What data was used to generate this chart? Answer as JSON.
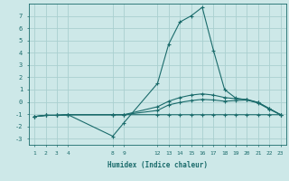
{
  "xlabel": "Humidex (Indice chaleur)",
  "bg_color": "#cde8e8",
  "grid_color": "#aad0d0",
  "line_color": "#1a6b6b",
  "ylim": [
    -3.5,
    8.0
  ],
  "yticks": [
    -3,
    -2,
    -1,
    0,
    1,
    2,
    3,
    4,
    5,
    6,
    7
  ],
  "xticks": [
    1,
    2,
    3,
    4,
    8,
    9,
    12,
    13,
    14,
    15,
    16,
    17,
    18,
    19,
    20,
    21,
    22,
    23
  ],
  "lines": [
    {
      "x": [
        1,
        2,
        3,
        4,
        8,
        9,
        12,
        13,
        14,
        15,
        16,
        17,
        18,
        19,
        20,
        21,
        22,
        23
      ],
      "y": [
        -1.2,
        -1.1,
        -1.1,
        -1.05,
        -1.05,
        -1.05,
        -1.05,
        -1.05,
        -1.05,
        -1.05,
        -1.05,
        -1.05,
        -1.05,
        -1.05,
        -1.05,
        -1.05,
        -1.05,
        -1.05
      ]
    },
    {
      "x": [
        1,
        2,
        3,
        4,
        8,
        9,
        12,
        13,
        14,
        15,
        16,
        17,
        18,
        19,
        20,
        21,
        22,
        23
      ],
      "y": [
        -1.2,
        -1.1,
        -1.1,
        -1.05,
        -2.8,
        -1.7,
        1.5,
        4.7,
        6.5,
        7.0,
        7.7,
        4.2,
        1.0,
        0.3,
        0.15,
        -0.1,
        -0.6,
        -1.05
      ]
    },
    {
      "x": [
        1,
        2,
        3,
        4,
        8,
        9,
        12,
        13,
        14,
        15,
        16,
        17,
        18,
        19,
        20,
        21,
        22,
        23
      ],
      "y": [
        -1.2,
        -1.1,
        -1.1,
        -1.05,
        -1.05,
        -1.05,
        -0.4,
        0.05,
        0.35,
        0.55,
        0.65,
        0.55,
        0.35,
        0.25,
        0.2,
        -0.05,
        -0.55,
        -1.05
      ]
    },
    {
      "x": [
        1,
        2,
        3,
        4,
        8,
        9,
        12,
        13,
        14,
        15,
        16,
        17,
        18,
        19,
        20,
        21,
        22,
        23
      ],
      "y": [
        -1.2,
        -1.1,
        -1.1,
        -1.05,
        -1.05,
        -1.05,
        -0.7,
        -0.25,
        -0.05,
        0.1,
        0.2,
        0.15,
        0.05,
        0.1,
        0.15,
        -0.05,
        -0.55,
        -1.05
      ]
    }
  ]
}
